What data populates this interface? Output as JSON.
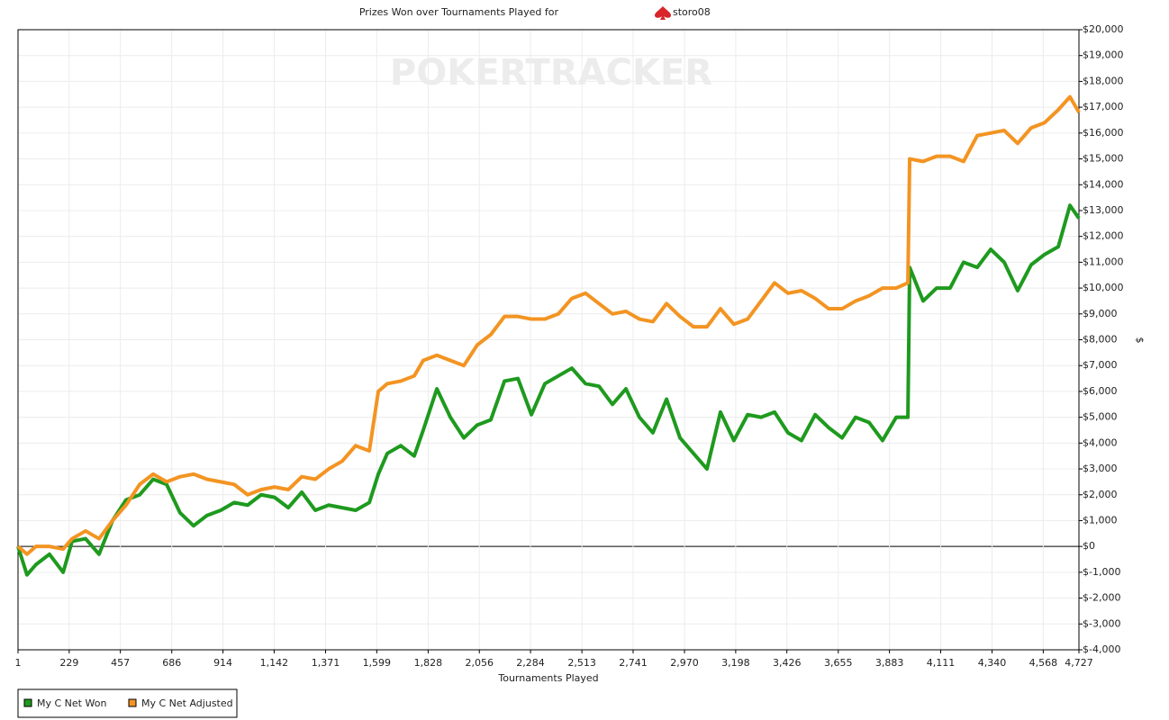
{
  "chart_data": {
    "type": "line",
    "title": "Prizes Won over Tournaments Played for",
    "player": "storo08",
    "watermark": "POKERTRACKER",
    "x_label": "Tournaments Played",
    "y_label": "$",
    "grid": true,
    "legend": "bottom-left",
    "xlim": [
      1,
      4727
    ],
    "ylim": [
      -4000,
      20000
    ],
    "xticks": [
      1,
      229,
      457,
      686,
      914,
      {
        "value": 1142,
        "label": "1,142"
      },
      {
        "value": 1371,
        "label": "1,371"
      },
      {
        "value": 1599,
        "label": "1,599"
      },
      {
        "value": 1828,
        "label": "1,828"
      },
      {
        "value": 2056,
        "label": "2,056"
      },
      {
        "value": 2284,
        "label": "2,284"
      },
      {
        "value": 2513,
        "label": "2,513"
      },
      {
        "value": 2741,
        "label": "2,741"
      },
      {
        "value": 2970,
        "label": "2,970"
      },
      {
        "value": 3198,
        "label": "3,198"
      },
      {
        "value": 3426,
        "label": "3,426"
      },
      {
        "value": 3655,
        "label": "3,655"
      },
      {
        "value": 3883,
        "label": "3,883"
      },
      {
        "value": 4111,
        "label": "4,111"
      },
      {
        "value": 4340,
        "label": "4,340"
      },
      {
        "value": 4568,
        "label": "4,568"
      },
      {
        "value": 4727,
        "label": "4,727"
      }
    ],
    "yticks": [
      {
        "value": -4000,
        "label": "$-4,000"
      },
      {
        "value": -3000,
        "label": "$-3,000"
      },
      {
        "value": -2000,
        "label": "$-2,000"
      },
      {
        "value": -1000,
        "label": "$-1,000"
      },
      {
        "value": 0,
        "label": "$0"
      },
      {
        "value": 1000,
        "label": "$1,000"
      },
      {
        "value": 2000,
        "label": "$2,000"
      },
      {
        "value": 3000,
        "label": "$3,000"
      },
      {
        "value": 4000,
        "label": "$4,000"
      },
      {
        "value": 5000,
        "label": "$5,000"
      },
      {
        "value": 6000,
        "label": "$6,000"
      },
      {
        "value": 7000,
        "label": "$7,000"
      },
      {
        "value": 8000,
        "label": "$8,000"
      },
      {
        "value": 9000,
        "label": "$9,000"
      },
      {
        "value": 10000,
        "label": "$10,000"
      },
      {
        "value": 11000,
        "label": "$11,000"
      },
      {
        "value": 12000,
        "label": "$12,000"
      },
      {
        "value": 13000,
        "label": "$13,000"
      },
      {
        "value": 14000,
        "label": "$14,000"
      },
      {
        "value": 15000,
        "label": "$15,000"
      },
      {
        "value": 16000,
        "label": "$16,000"
      },
      {
        "value": 17000,
        "label": "$17,000"
      },
      {
        "value": 18000,
        "label": "$18,000"
      },
      {
        "value": 19000,
        "label": "$19,000"
      },
      {
        "value": 20000,
        "label": "$20,000"
      }
    ],
    "x": [
      1,
      41,
      81,
      141,
      202,
      242,
      302,
      362,
      422,
      482,
      543,
      603,
      663,
      723,
      783,
      843,
      904,
      964,
      1024,
      1084,
      1144,
      1205,
      1265,
      1325,
      1385,
      1445,
      1505,
      1566,
      1606,
      1646,
      1706,
      1766,
      1806,
      1867,
      1927,
      1987,
      2047,
      2107,
      2168,
      2228,
      2288,
      2348,
      2408,
      2468,
      2529,
      2589,
      2649,
      2709,
      2769,
      2829,
      2890,
      2950,
      3010,
      3070,
      3130,
      3190,
      3251,
      3311,
      3371,
      3431,
      3491,
      3552,
      3612,
      3672,
      3732,
      3792,
      3852,
      3913,
      3965,
      3973,
      4033,
      4093,
      4153,
      4213,
      4274,
      4334,
      4394,
      4454,
      4514,
      4574,
      4635,
      4687,
      4727
    ],
    "series": [
      {
        "name": "My C Net Won",
        "color": "#1e9a1e",
        "values": [
          0,
          -1100,
          -700,
          -300,
          -1000,
          200,
          300,
          -300,
          1000,
          1800,
          2000,
          2600,
          2400,
          1300,
          800,
          1200,
          1400,
          1700,
          1600,
          2000,
          1900,
          1500,
          2100,
          1400,
          1600,
          1500,
          1400,
          1700,
          2800,
          3600,
          3900,
          3500,
          4500,
          6100,
          5000,
          4200,
          4700,
          4900,
          6400,
          6500,
          5100,
          6300,
          6600,
          6900,
          6300,
          6200,
          5500,
          6100,
          5000,
          4400,
          5700,
          4200,
          3600,
          3000,
          5200,
          4100,
          5100,
          5000,
          5200,
          4400,
          4100,
          5100,
          4600,
          4200,
          5000,
          4800,
          4100,
          5000,
          5000,
          10800,
          9500,
          10000,
          10000,
          11000,
          10800,
          11500,
          11000,
          9900,
          10900,
          11300,
          11600,
          13200,
          12700
        ]
      },
      {
        "name": "My C Net Adjusted",
        "color": "#f39422",
        "values": [
          0,
          -300,
          0,
          0,
          -100,
          300,
          600,
          300,
          1000,
          1600,
          2400,
          2800,
          2500,
          2700,
          2800,
          2600,
          2500,
          2400,
          2000,
          2200,
          2300,
          2200,
          2700,
          2600,
          3000,
          3300,
          3900,
          3700,
          6000,
          6300,
          6400,
          6600,
          7200,
          7400,
          7200,
          7000,
          7800,
          8200,
          8900,
          8900,
          8800,
          8800,
          9000,
          9600,
          9800,
          9400,
          9000,
          9100,
          8800,
          8700,
          9400,
          8900,
          8500,
          8500,
          9200,
          8600,
          8800,
          9500,
          10200,
          9800,
          9900,
          9600,
          9200,
          9200,
          9500,
          9700,
          10000,
          10000,
          10200,
          15000,
          14900,
          15100,
          15100,
          14900,
          15900,
          16000,
          16100,
          15600,
          16200,
          16400,
          16900,
          17400,
          16800
        ]
      }
    ]
  }
}
